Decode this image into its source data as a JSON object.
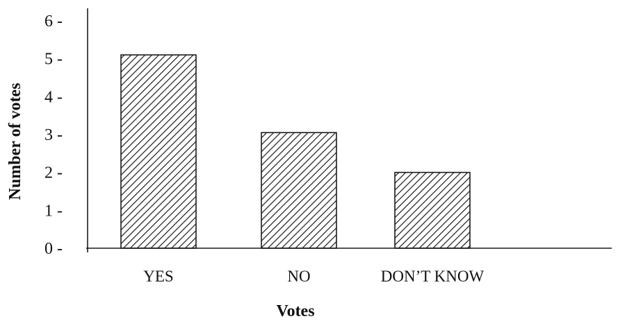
{
  "chart_data": {
    "type": "bar",
    "title": "",
    "xlabel": "Votes",
    "ylabel": "Number of votes",
    "categories": [
      "YES",
      "NO",
      "DON’T KNOW"
    ],
    "values": [
      5.1,
      3.05,
      2.0
    ],
    "ylim": [
      0,
      6
    ],
    "yticks": [
      0,
      1,
      2,
      3,
      4,
      5,
      6
    ],
    "ytick_labels": [
      "0 -",
      "1 -",
      "2 -",
      "3 -",
      "4 -",
      "5 -",
      "6 -"
    ],
    "grid": false,
    "legend": "none",
    "bar_fill": "diagonal-hatch",
    "colors": {
      "bar_stroke": "#1a1a1a",
      "hatch": "#1a1a1a",
      "axis": "#1a1a1a",
      "background": "#ffffff"
    }
  }
}
